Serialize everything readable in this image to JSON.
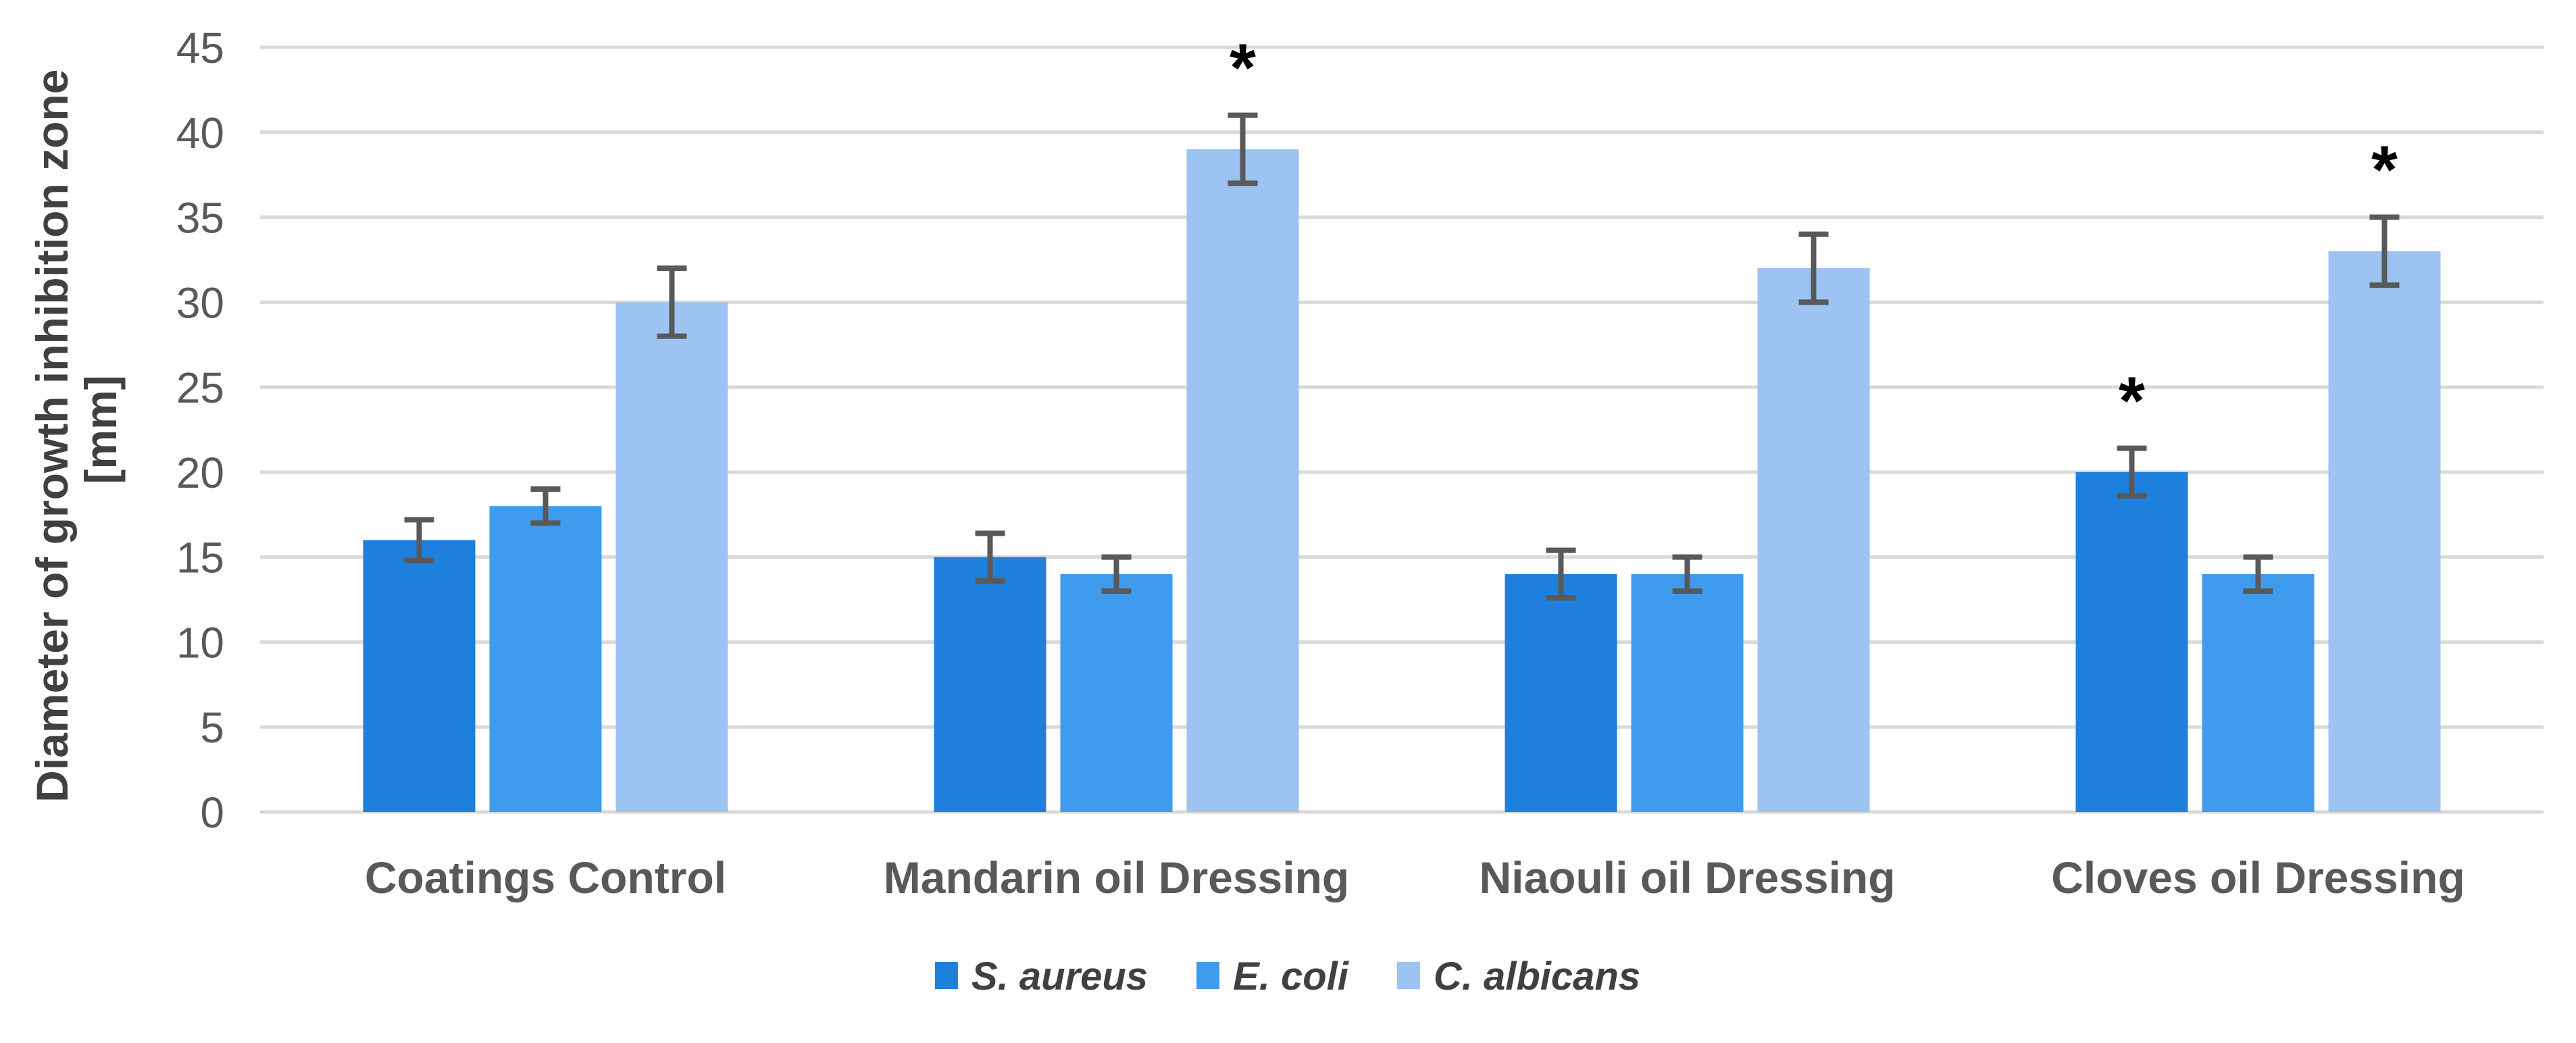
{
  "chart_data": {
    "type": "bar",
    "title": "",
    "ylabel_line1": "Diameter of growth inhibition zone",
    "ylabel_line2": "[mm]",
    "categories": [
      "Coatings Control",
      "Mandarin oil Dressing",
      "Niaouli oil Dressing",
      "Cloves oil Dressing"
    ],
    "series": [
      {
        "name": "S. aureus",
        "color": "#1E7FDC",
        "values": [
          16,
          15,
          14,
          20
        ],
        "errors": [
          1.2,
          1.4,
          1.4,
          1.4
        ],
        "significant": [
          false,
          false,
          false,
          true
        ]
      },
      {
        "name": "E. coli",
        "color": "#3F9BEE",
        "values": [
          18,
          14,
          14,
          14
        ],
        "errors": [
          1.0,
          1.0,
          1.0,
          1.0
        ],
        "significant": [
          false,
          false,
          false,
          false
        ]
      },
      {
        "name": "C. albicans",
        "color": "#9CC3F1",
        "values": [
          30,
          39,
          32,
          33
        ],
        "errors": [
          2.0,
          2.0,
          2.0,
          2.0
        ],
        "significant": [
          false,
          true,
          false,
          true
        ]
      }
    ],
    "y_axis": {
      "min": 0,
      "max": 45,
      "step": 5,
      "ticks": [
        0,
        5,
        10,
        15,
        20,
        25,
        30,
        35,
        40,
        45
      ]
    },
    "xlabel": "",
    "grid": true,
    "legend_position": "bottom",
    "significance_marker": "*",
    "style": {
      "background": "#FFFFFF",
      "gridline_color": "#D9D9D9",
      "error_bar_color": "#595959",
      "tick_label_color": "#595959",
      "category_label_color": "#595959",
      "axis_title_color": "#404040",
      "legend_text_color": "#404040",
      "marker_color": "#000000"
    }
  }
}
